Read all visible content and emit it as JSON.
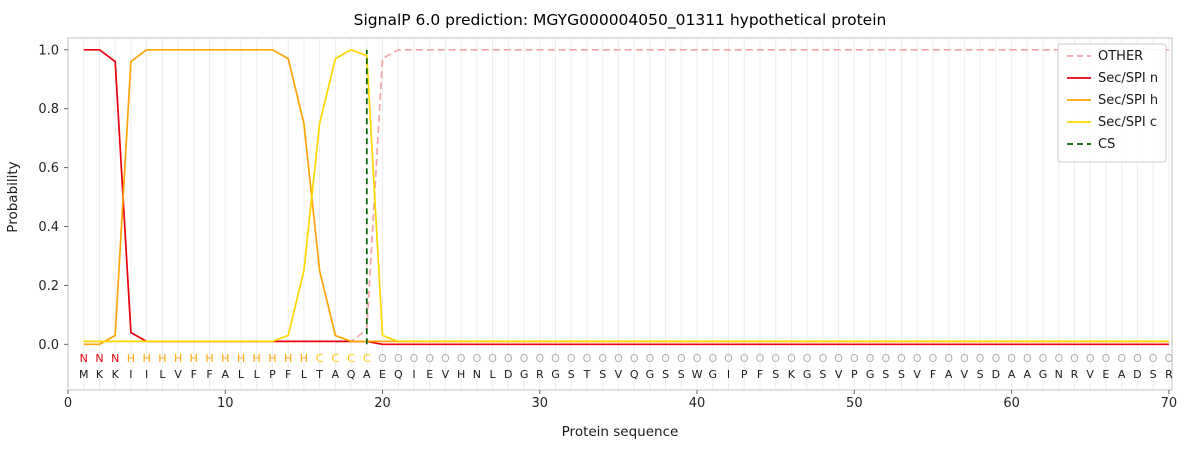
{
  "chart_data": {
    "type": "line",
    "title": "SignalP 6.0 prediction: MGYG000004050_01311 hypothetical protein",
    "xlabel": "Protein sequence",
    "ylabel": "Probability",
    "xlim": [
      0,
      70.2
    ],
    "ylim": [
      -0.155,
      1.04
    ],
    "xticks": [
      0,
      10,
      20,
      30,
      40,
      50,
      60,
      70
    ],
    "yticks": [
      "0.0",
      "0.2",
      "0.4",
      "0.6",
      "0.8",
      "1.0"
    ],
    "grid": "vertical line at every residue position, light grey",
    "legend_position": "upper right",
    "x": [
      1,
      2,
      3,
      4,
      5,
      6,
      7,
      8,
      9,
      10,
      11,
      12,
      13,
      14,
      15,
      16,
      17,
      18,
      19,
      20,
      21,
      22,
      23,
      24,
      25,
      26,
      27,
      28,
      29,
      30,
      31,
      32,
      33,
      34,
      35,
      36,
      37,
      38,
      39,
      40,
      41,
      42,
      43,
      44,
      45,
      46,
      47,
      48,
      49,
      50,
      51,
      52,
      53,
      54,
      55,
      56,
      57,
      58,
      59,
      60,
      61,
      62,
      63,
      64,
      65,
      66,
      67,
      68,
      69,
      70
    ],
    "series": [
      {
        "name": "OTHER",
        "style": "dashed",
        "color": "#f4a4a4",
        "values": [
          0.01,
          0.01,
          0.01,
          0.01,
          0.01,
          0.01,
          0.01,
          0.01,
          0.01,
          0.01,
          0.01,
          0.01,
          0.01,
          0.01,
          0.01,
          0.01,
          0.01,
          0.01,
          0.05,
          0.97,
          1.0,
          1.0,
          1.0,
          1.0,
          1.0,
          1.0,
          1.0,
          1.0,
          1.0,
          1.0,
          1.0,
          1.0,
          1.0,
          1.0,
          1.0,
          1.0,
          1.0,
          1.0,
          1.0,
          1.0,
          1.0,
          1.0,
          1.0,
          1.0,
          1.0,
          1.0,
          1.0,
          1.0,
          1.0,
          1.0,
          1.0,
          1.0,
          1.0,
          1.0,
          1.0,
          1.0,
          1.0,
          1.0,
          1.0,
          1.0,
          1.0,
          1.0,
          1.0,
          1.0,
          1.0,
          1.0,
          1.0,
          1.0,
          1.0,
          1.0
        ]
      },
      {
        "name": "Sec/SPI n",
        "style": "solid",
        "color": "#e8000b",
        "values": [
          1.0,
          1.0,
          0.96,
          0.04,
          0.01,
          0.01,
          0.01,
          0.01,
          0.01,
          0.01,
          0.01,
          0.01,
          0.01,
          0.01,
          0.01,
          0.01,
          0.01,
          0.01,
          0.01,
          0.0,
          0.0,
          0.0,
          0.0,
          0.0,
          0.0,
          0.0,
          0.0,
          0.0,
          0.0,
          0.0,
          0.0,
          0.0,
          0.0,
          0.0,
          0.0,
          0.0,
          0.0,
          0.0,
          0.0,
          0.0,
          0.0,
          0.0,
          0.0,
          0.0,
          0.0,
          0.0,
          0.0,
          0.0,
          0.0,
          0.0,
          0.0,
          0.0,
          0.0,
          0.0,
          0.0,
          0.0,
          0.0,
          0.0,
          0.0,
          0.0,
          0.0,
          0.0,
          0.0,
          0.0,
          0.0,
          0.0,
          0.0,
          0.0,
          0.0,
          0.0
        ]
      },
      {
        "name": "Sec/SPI h",
        "style": "solid",
        "color": "#ffa408",
        "values": [
          0.0,
          0.0,
          0.03,
          0.96,
          1.0,
          1.0,
          1.0,
          1.0,
          1.0,
          1.0,
          1.0,
          1.0,
          1.0,
          0.97,
          0.75,
          0.25,
          0.03,
          0.01,
          0.01,
          0.01,
          0.01,
          0.01,
          0.01,
          0.01,
          0.01,
          0.01,
          0.01,
          0.01,
          0.01,
          0.01,
          0.01,
          0.01,
          0.01,
          0.01,
          0.01,
          0.01,
          0.01,
          0.01,
          0.01,
          0.01,
          0.01,
          0.01,
          0.01,
          0.01,
          0.01,
          0.01,
          0.01,
          0.01,
          0.01,
          0.01,
          0.01,
          0.01,
          0.01,
          0.01,
          0.01,
          0.01,
          0.01,
          0.01,
          0.01,
          0.01,
          0.01,
          0.01,
          0.01,
          0.01,
          0.01,
          0.01,
          0.01,
          0.01,
          0.01,
          0.01
        ]
      },
      {
        "name": "Sec/SPI c",
        "style": "solid",
        "color": "#ffd700",
        "values": [
          0.01,
          0.01,
          0.01,
          0.01,
          0.01,
          0.01,
          0.01,
          0.01,
          0.01,
          0.01,
          0.01,
          0.01,
          0.01,
          0.03,
          0.25,
          0.75,
          0.97,
          1.0,
          0.98,
          0.03,
          0.01,
          0.01,
          0.01,
          0.01,
          0.01,
          0.01,
          0.01,
          0.01,
          0.01,
          0.01,
          0.01,
          0.01,
          0.01,
          0.01,
          0.01,
          0.01,
          0.01,
          0.01,
          0.01,
          0.01,
          0.01,
          0.01,
          0.01,
          0.01,
          0.01,
          0.01,
          0.01,
          0.01,
          0.01,
          0.01,
          0.01,
          0.01,
          0.01,
          0.01,
          0.01,
          0.01,
          0.01,
          0.01,
          0.01,
          0.01,
          0.01,
          0.01,
          0.01,
          0.01,
          0.01,
          0.01,
          0.01,
          0.01,
          0.01,
          0.01
        ]
      }
    ],
    "cs_marker": {
      "label": "CS",
      "position": 19,
      "style": "dashed",
      "color": "#006400"
    },
    "region_labels": [
      "N",
      "N",
      "N",
      "H",
      "H",
      "H",
      "H",
      "H",
      "H",
      "H",
      "H",
      "H",
      "H",
      "H",
      "H",
      "C",
      "C",
      "C",
      "C",
      "O",
      "O",
      "O",
      "O",
      "O",
      "O",
      "O",
      "O",
      "O",
      "O",
      "O",
      "O",
      "O",
      "O",
      "O",
      "O",
      "O",
      "O",
      "O",
      "O",
      "O",
      "O",
      "O",
      "O",
      "O",
      "O",
      "O",
      "O",
      "O",
      "O",
      "O",
      "O",
      "O",
      "O",
      "O",
      "O",
      "O",
      "O",
      "O",
      "O",
      "O",
      "O",
      "O",
      "O",
      "O",
      "O",
      "O",
      "O",
      "O",
      "O",
      "O"
    ],
    "sequence": [
      "M",
      "K",
      "K",
      "I",
      "I",
      "L",
      "V",
      "F",
      "F",
      "A",
      "L",
      "L",
      "P",
      "F",
      "L",
      "T",
      "A",
      "Q",
      "A",
      "E",
      "Q",
      "I",
      "E",
      "V",
      "H",
      "N",
      "L",
      "D",
      "G",
      "R",
      "G",
      "S",
      "T",
      "S",
      "V",
      "Q",
      "G",
      "S",
      "S",
      "W",
      "G",
      "I",
      "P",
      "F",
      "S",
      "K",
      "G",
      "S",
      "V",
      "P",
      "G",
      "S",
      "S",
      "V",
      "F",
      "A",
      "V",
      "S",
      "D",
      "A",
      "A",
      "G",
      "N",
      "R",
      "V",
      "E",
      "A",
      "D",
      "S",
      "R"
    ],
    "colors": {
      "grid": "#ececec",
      "frame": "#c0c0c0",
      "tick": "#666666",
      "tick_text": "#262626",
      "region_N": "#e8000b",
      "region_H": "#ffa408",
      "region_C": "#ffc800",
      "region_O": "#b0b0b0",
      "sequence_text": "#1a1a1a",
      "legend_border": "#cccccc",
      "legend_text": "#1a1a1a"
    }
  }
}
